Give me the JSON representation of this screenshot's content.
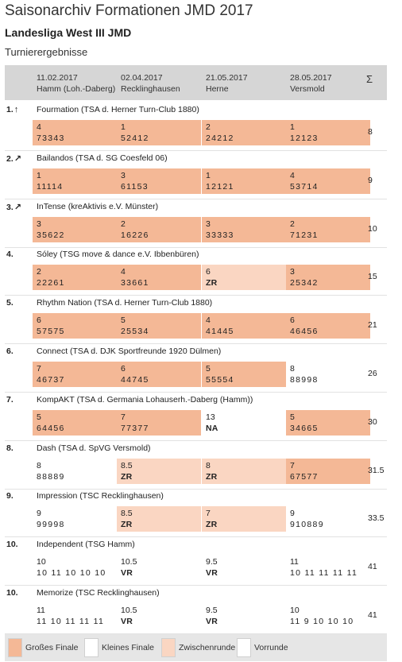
{
  "header": {
    "title": "Saisonarchiv Formationen JMD 2017",
    "league": "Landesliga West III JMD",
    "subtitle": "Turnierergebnisse"
  },
  "columns": [
    {
      "date": "11.02.2017",
      "venue": "Hamm (Loh.-Daberg)"
    },
    {
      "date": "02.04.2017",
      "venue": "Recklinghausen"
    },
    {
      "date": "21.05.2017",
      "venue": "Herne"
    },
    {
      "date": "28.05.2017",
      "venue": "Versmold"
    }
  ],
  "sum_symbol": "Σ",
  "colors": {
    "grosses_finale": "#f4b896",
    "zwischenrunde": "#fad6c2",
    "header_bg": "#d6d6d6"
  },
  "teams": [
    {
      "pos": "1.",
      "trend": "up-arrow-icon",
      "arrow": "↑",
      "name": "Fourmation (TSA d. Herner Turn-Club 1880)",
      "total": "8",
      "results": [
        {
          "place": "4",
          "scores": "73343",
          "round": "gf"
        },
        {
          "place": "1",
          "scores": "52412",
          "round": "gf"
        },
        {
          "place": "2",
          "scores": "24212",
          "round": "gf"
        },
        {
          "place": "1",
          "scores": "12123",
          "round": "gf"
        }
      ]
    },
    {
      "pos": "2.",
      "trend": "up-right-arrow-icon",
      "arrow": "↗",
      "name": "Bailandos (TSA d. SG Coesfeld 06)",
      "total": "9",
      "results": [
        {
          "place": "1",
          "scores": "11114",
          "round": "gf"
        },
        {
          "place": "3",
          "scores": "61153",
          "round": "gf"
        },
        {
          "place": "1",
          "scores": "12121",
          "round": "gf"
        },
        {
          "place": "4",
          "scores": "53714",
          "round": "gf"
        }
      ]
    },
    {
      "pos": "3.",
      "trend": "up-right-arrow-icon",
      "arrow": "↗",
      "name": "InTense (kreAktivis e.V. Münster)",
      "total": "10",
      "results": [
        {
          "place": "3",
          "scores": "35622",
          "round": "gf"
        },
        {
          "place": "2",
          "scores": "16226",
          "round": "gf"
        },
        {
          "place": "3",
          "scores": "33333",
          "round": "gf"
        },
        {
          "place": "2",
          "scores": "71231",
          "round": "gf"
        }
      ]
    },
    {
      "pos": "4.",
      "trend": "",
      "arrow": "",
      "name": "Sóley (TSG move & dance e.V. Ibbenbüren)",
      "total": "15",
      "results": [
        {
          "place": "2",
          "scores": "22261",
          "round": "gf"
        },
        {
          "place": "4",
          "scores": "33661",
          "round": "gf"
        },
        {
          "place": "6",
          "scores": "ZR",
          "round": "zr"
        },
        {
          "place": "3",
          "scores": "25342",
          "round": "gf"
        }
      ]
    },
    {
      "pos": "5.",
      "trend": "",
      "arrow": "",
      "name": "Rhythm Nation (TSA d. Herner Turn-Club 1880)",
      "total": "21",
      "results": [
        {
          "place": "6",
          "scores": "57575",
          "round": "gf"
        },
        {
          "place": "5",
          "scores": "25534",
          "round": "gf"
        },
        {
          "place": "4",
          "scores": "41445",
          "round": "gf"
        },
        {
          "place": "6",
          "scores": "46456",
          "round": "gf"
        }
      ]
    },
    {
      "pos": "6.",
      "trend": "",
      "arrow": "",
      "name": "Connect (TSA d. DJK Sportfreunde 1920 Dülmen)",
      "total": "26",
      "results": [
        {
          "place": "7",
          "scores": "46737",
          "round": "gf"
        },
        {
          "place": "6",
          "scores": "44745",
          "round": "gf"
        },
        {
          "place": "5",
          "scores": "55554",
          "round": "gf"
        },
        {
          "place": "8",
          "scores": "88998",
          "round": "kf"
        }
      ]
    },
    {
      "pos": "7.",
      "trend": "",
      "arrow": "",
      "name": "KompAKT (TSA d. Germania Lohauserh.-Daberg (Hamm))",
      "total": "30",
      "results": [
        {
          "place": "5",
          "scores": "64456",
          "round": "gf"
        },
        {
          "place": "7",
          "scores": "77377",
          "round": "gf"
        },
        {
          "place": "13",
          "scores": "NA",
          "round": "kf"
        },
        {
          "place": "5",
          "scores": "34665",
          "round": "gf"
        }
      ]
    },
    {
      "pos": "8.",
      "trend": "",
      "arrow": "",
      "name": "Dash (TSA d. SpVG Versmold)",
      "total": "31.5",
      "results": [
        {
          "place": "8",
          "scores": "88889",
          "round": "kf"
        },
        {
          "place": "8.5",
          "scores": "ZR",
          "round": "zr"
        },
        {
          "place": "8",
          "scores": "ZR",
          "round": "zr"
        },
        {
          "place": "7",
          "scores": "67577",
          "round": "gf"
        }
      ]
    },
    {
      "pos": "9.",
      "trend": "",
      "arrow": "",
      "name": "Impression (TSC Recklinghausen)",
      "total": "33.5",
      "results": [
        {
          "place": "9",
          "scores": "99998",
          "round": "kf"
        },
        {
          "place": "8.5",
          "scores": "ZR",
          "round": "zr"
        },
        {
          "place": "7",
          "scores": "ZR",
          "round": "zr"
        },
        {
          "place": "9",
          "scores": "910889",
          "round": "kf"
        }
      ]
    },
    {
      "pos": "10.",
      "trend": "",
      "arrow": "",
      "name": "Independent (TSG Hamm)",
      "total": "41",
      "results": [
        {
          "place": "10",
          "scores": "10 11 10 10 10",
          "round": "vr"
        },
        {
          "place": "10.5",
          "scores": "VR",
          "round": "vr"
        },
        {
          "place": "9.5",
          "scores": "VR",
          "round": "vr"
        },
        {
          "place": "11",
          "scores": "10 11 11 11 11",
          "round": "vr"
        }
      ]
    },
    {
      "pos": "10.",
      "trend": "",
      "arrow": "",
      "name": "Memorize (TSC Recklinghausen)",
      "total": "41",
      "results": [
        {
          "place": "11",
          "scores": "11 10 11 11 11",
          "round": "vr"
        },
        {
          "place": "10.5",
          "scores": "VR",
          "round": "vr"
        },
        {
          "place": "9.5",
          "scores": "VR",
          "round": "vr"
        },
        {
          "place": "10",
          "scores": "11 9 10 10 10",
          "round": "vr"
        }
      ]
    }
  ],
  "legend": [
    {
      "label": "Großes Finale",
      "color": "#f4b896"
    },
    {
      "label": "Kleines Finale",
      "color": "#ffffff"
    },
    {
      "label": "Zwischenrunde",
      "color": "#fad6c2"
    },
    {
      "label": "Vorrunde",
      "color": "#ffffff"
    }
  ]
}
